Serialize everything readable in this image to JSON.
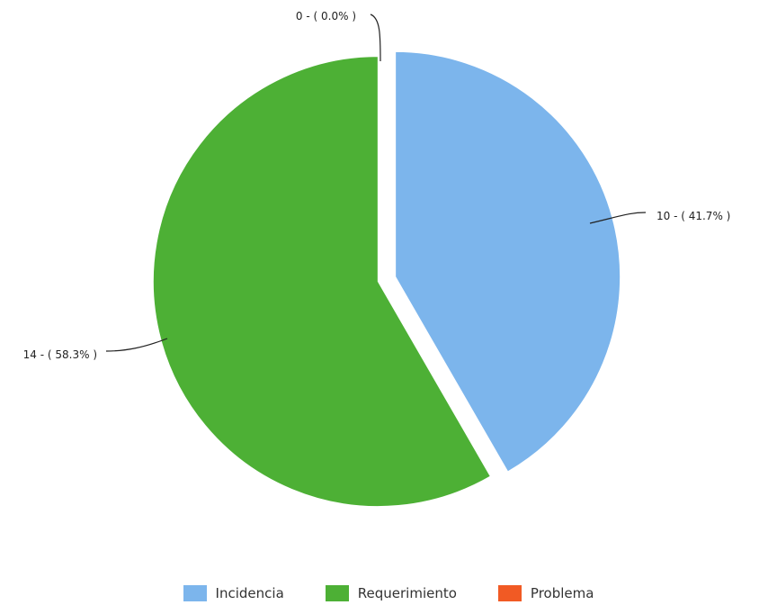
{
  "chart_data": {
    "type": "pie",
    "slices": [
      {
        "name": "Incidencia",
        "value": 10,
        "label": "10 - ( 41.7% )",
        "color": "#7cb5ec"
      },
      {
        "name": "Requerimiento",
        "value": 14,
        "label": "14 - ( 58.3% )",
        "color": "#4db035"
      },
      {
        "name": "Problema",
        "value": 0,
        "label": "0 - ( 0.0% )",
        "color": "#f15a24"
      }
    ],
    "legend_position": "bottom-center"
  }
}
